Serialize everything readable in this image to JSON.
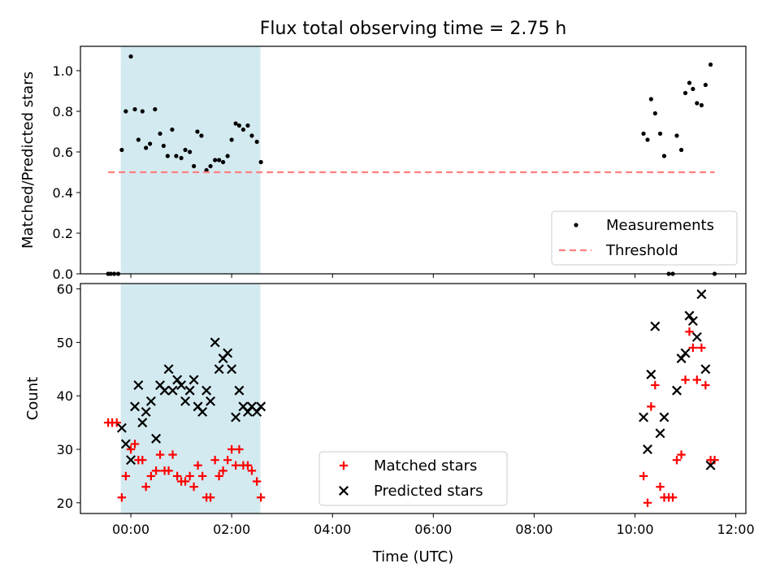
{
  "chart_data": {
    "title": "Flux total observing time = 2.75 h",
    "xlabel": "Time (UTC)",
    "xlim": [
      -1.0,
      12.2
    ],
    "xticks": [
      {
        "value": 0,
        "label": "00:00"
      },
      {
        "value": 2,
        "label": "02:00"
      },
      {
        "value": 4,
        "label": "04:00"
      },
      {
        "value": 6,
        "label": "06:00"
      },
      {
        "value": 8,
        "label": "08:00"
      },
      {
        "value": 10,
        "label": "10:00"
      },
      {
        "value": 12,
        "label": "12:00"
      }
    ],
    "shaded_span": {
      "x0": -0.2,
      "x1": 2.57,
      "color": "#d3eaf0"
    },
    "panels": [
      {
        "type": "scatter",
        "ylabel": "Matched/Predicted stars",
        "ylim": [
          0,
          1.12
        ],
        "yticks": [
          {
            "value": 0.0,
            "label": "0.0"
          },
          {
            "value": 0.2,
            "label": "0.2"
          },
          {
            "value": 0.4,
            "label": "0.4"
          },
          {
            "value": 0.6,
            "label": "0.6"
          },
          {
            "value": 0.8,
            "label": "0.8"
          },
          {
            "value": 1.0,
            "label": "1.0"
          }
        ],
        "series": [
          {
            "name": "Measurements",
            "marker": "dot",
            "color": "#000000",
            "points": [
              [
                -0.45,
                0.0
              ],
              [
                -0.4,
                0.0
              ],
              [
                -0.33,
                0.0
              ],
              [
                -0.25,
                0.0
              ],
              [
                -0.18,
                0.61
              ],
              [
                -0.1,
                0.8
              ],
              [
                0.0,
                1.07
              ],
              [
                0.08,
                0.81
              ],
              [
                0.15,
                0.66
              ],
              [
                0.23,
                0.8
              ],
              [
                0.3,
                0.62
              ],
              [
                0.38,
                0.64
              ],
              [
                0.48,
                0.81
              ],
              [
                0.58,
                0.69
              ],
              [
                0.65,
                0.63
              ],
              [
                0.73,
                0.58
              ],
              [
                0.82,
                0.71
              ],
              [
                0.9,
                0.58
              ],
              [
                1.0,
                0.57
              ],
              [
                1.08,
                0.61
              ],
              [
                1.17,
                0.6
              ],
              [
                1.25,
                0.53
              ],
              [
                1.32,
                0.7
              ],
              [
                1.4,
                0.68
              ],
              [
                1.5,
                0.51
              ],
              [
                1.58,
                0.53
              ],
              [
                1.67,
                0.56
              ],
              [
                1.75,
                0.56
              ],
              [
                1.83,
                0.55
              ],
              [
                1.92,
                0.58
              ],
              [
                2.0,
                0.66
              ],
              [
                2.08,
                0.74
              ],
              [
                2.15,
                0.73
              ],
              [
                2.23,
                0.71
              ],
              [
                2.32,
                0.73
              ],
              [
                2.4,
                0.68
              ],
              [
                2.5,
                0.65
              ],
              [
                2.58,
                0.55
              ],
              [
                10.17,
                0.69
              ],
              [
                10.25,
                0.66
              ],
              [
                10.32,
                0.86
              ],
              [
                10.4,
                0.79
              ],
              [
                10.5,
                0.69
              ],
              [
                10.58,
                0.58
              ],
              [
                10.67,
                0.0
              ],
              [
                10.75,
                0.0
              ],
              [
                10.83,
                0.68
              ],
              [
                10.92,
                0.61
              ],
              [
                11.0,
                0.89
              ],
              [
                11.08,
                0.94
              ],
              [
                11.15,
                0.91
              ],
              [
                11.23,
                0.84
              ],
              [
                11.32,
                0.83
              ],
              [
                11.4,
                0.93
              ],
              [
                11.5,
                1.03
              ],
              [
                11.58,
                0.0
              ]
            ]
          },
          {
            "name": "Threshold",
            "marker": "dashed-line",
            "color": "#ff7f7f",
            "points": [
              [
                -0.45,
                0.5
              ],
              [
                11.58,
                0.5
              ]
            ]
          }
        ],
        "legend": {
          "position": "lower-right",
          "entries": [
            {
              "label": "Measurements",
              "marker": "dot",
              "color": "#000000"
            },
            {
              "label": "Threshold",
              "marker": "dashed-line",
              "color": "#ff7f7f"
            }
          ]
        }
      },
      {
        "type": "scatter",
        "ylabel": "Count",
        "ylim": [
          18,
          61
        ],
        "yticks": [
          {
            "value": 20,
            "label": "20"
          },
          {
            "value": 30,
            "label": "30"
          },
          {
            "value": 40,
            "label": "40"
          },
          {
            "value": 50,
            "label": "50"
          },
          {
            "value": 60,
            "label": "60"
          }
        ],
        "series": [
          {
            "name": "Matched stars",
            "marker": "plus",
            "color": "#ff0000",
            "points": [
              [
                -0.45,
                35
              ],
              [
                -0.37,
                35
              ],
              [
                -0.28,
                35
              ],
              [
                -0.18,
                21
              ],
              [
                -0.1,
                25
              ],
              [
                0.0,
                30
              ],
              [
                0.08,
                31
              ],
              [
                0.15,
                28
              ],
              [
                0.23,
                28
              ],
              [
                0.3,
                23
              ],
              [
                0.4,
                25
              ],
              [
                0.5,
                26
              ],
              [
                0.58,
                29
              ],
              [
                0.67,
                26
              ],
              [
                0.75,
                26
              ],
              [
                0.83,
                29
              ],
              [
                0.92,
                25
              ],
              [
                1.0,
                24
              ],
              [
                1.08,
                24
              ],
              [
                1.17,
                25
              ],
              [
                1.25,
                23
              ],
              [
                1.33,
                27
              ],
              [
                1.42,
                25
              ],
              [
                1.5,
                21
              ],
              [
                1.58,
                21
              ],
              [
                1.67,
                28
              ],
              [
                1.75,
                25
              ],
              [
                1.83,
                26
              ],
              [
                1.92,
                28
              ],
              [
                2.0,
                30
              ],
              [
                2.08,
                27
              ],
              [
                2.15,
                30
              ],
              [
                2.23,
                27
              ],
              [
                2.32,
                27
              ],
              [
                2.4,
                26
              ],
              [
                2.5,
                24
              ],
              [
                2.58,
                21
              ],
              [
                10.17,
                25
              ],
              [
                10.25,
                20
              ],
              [
                10.32,
                38
              ],
              [
                10.4,
                42
              ],
              [
                10.5,
                23
              ],
              [
                10.58,
                21
              ],
              [
                10.67,
                21
              ],
              [
                10.75,
                21
              ],
              [
                10.83,
                28
              ],
              [
                10.92,
                29
              ],
              [
                11.0,
                43
              ],
              [
                11.08,
                52
              ],
              [
                11.15,
                49
              ],
              [
                11.23,
                43
              ],
              [
                11.32,
                49
              ],
              [
                11.4,
                42
              ],
              [
                11.5,
                28
              ],
              [
                11.58,
                28
              ]
            ]
          },
          {
            "name": "Predicted stars",
            "marker": "cross",
            "color": "#000000",
            "points": [
              [
                -0.18,
                34
              ],
              [
                -0.1,
                31
              ],
              [
                0.0,
                28
              ],
              [
                0.08,
                38
              ],
              [
                0.15,
                42
              ],
              [
                0.23,
                35
              ],
              [
                0.3,
                37
              ],
              [
                0.4,
                39
              ],
              [
                0.5,
                32
              ],
              [
                0.58,
                42
              ],
              [
                0.67,
                41
              ],
              [
                0.75,
                45
              ],
              [
                0.83,
                41
              ],
              [
                0.92,
                43
              ],
              [
                1.0,
                42
              ],
              [
                1.08,
                39
              ],
              [
                1.17,
                41
              ],
              [
                1.25,
                43
              ],
              [
                1.33,
                38
              ],
              [
                1.42,
                37
              ],
              [
                1.5,
                41
              ],
              [
                1.58,
                39
              ],
              [
                1.67,
                50
              ],
              [
                1.75,
                45
              ],
              [
                1.83,
                47
              ],
              [
                1.92,
                48
              ],
              [
                2.0,
                45
              ],
              [
                2.08,
                36
              ],
              [
                2.15,
                41
              ],
              [
                2.23,
                38
              ],
              [
                2.32,
                37
              ],
              [
                2.4,
                38
              ],
              [
                2.5,
                37
              ],
              [
                2.58,
                38
              ],
              [
                10.17,
                36
              ],
              [
                10.25,
                30
              ],
              [
                10.32,
                44
              ],
              [
                10.4,
                53
              ],
              [
                10.5,
                33
              ],
              [
                10.58,
                36
              ],
              [
                10.83,
                41
              ],
              [
                10.92,
                47
              ],
              [
                11.0,
                48
              ],
              [
                11.08,
                55
              ],
              [
                11.15,
                54
              ],
              [
                11.23,
                51
              ],
              [
                11.32,
                59
              ],
              [
                11.4,
                45
              ],
              [
                11.5,
                27
              ]
            ]
          }
        ],
        "legend": {
          "position": "lower-center",
          "entries": [
            {
              "label": "Matched stars",
              "marker": "plus",
              "color": "#ff0000"
            },
            {
              "label": "Predicted stars",
              "marker": "cross",
              "color": "#000000"
            }
          ]
        }
      }
    ]
  }
}
